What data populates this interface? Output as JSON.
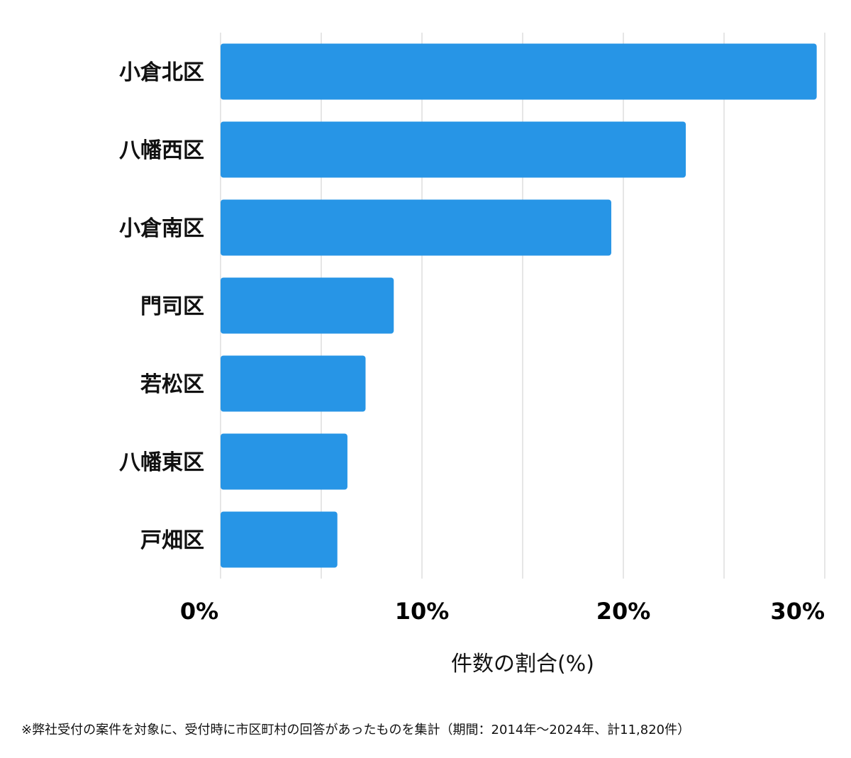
{
  "chart_data": {
    "type": "bar",
    "orientation": "horizontal",
    "categories": [
      "小倉北区",
      "八幡西区",
      "小倉南区",
      "門司区",
      "若松区",
      "八幡東区",
      "戸畑区"
    ],
    "values": [
      29.6,
      23.1,
      19.4,
      8.6,
      7.2,
      6.3,
      5.8
    ],
    "xlim": [
      0,
      30
    ],
    "xticks": [
      {
        "value": 0,
        "label": "0%"
      },
      {
        "value": 10,
        "label": "10%"
      },
      {
        "value": 20,
        "label": "20%"
      },
      {
        "value": 30,
        "label": "30%"
      }
    ],
    "gridlines": [
      0,
      5,
      10,
      15,
      20,
      25,
      30
    ],
    "xlabel": "件数の割合(%)",
    "ylabel": "",
    "grid": true,
    "legend": "none",
    "bar_color": "#2795e6"
  },
  "footnote": "※弊社受付の案件を対象に、受付時に市区町村の回答があったものを集計（期間：2014年～2024年、計11,820件）"
}
